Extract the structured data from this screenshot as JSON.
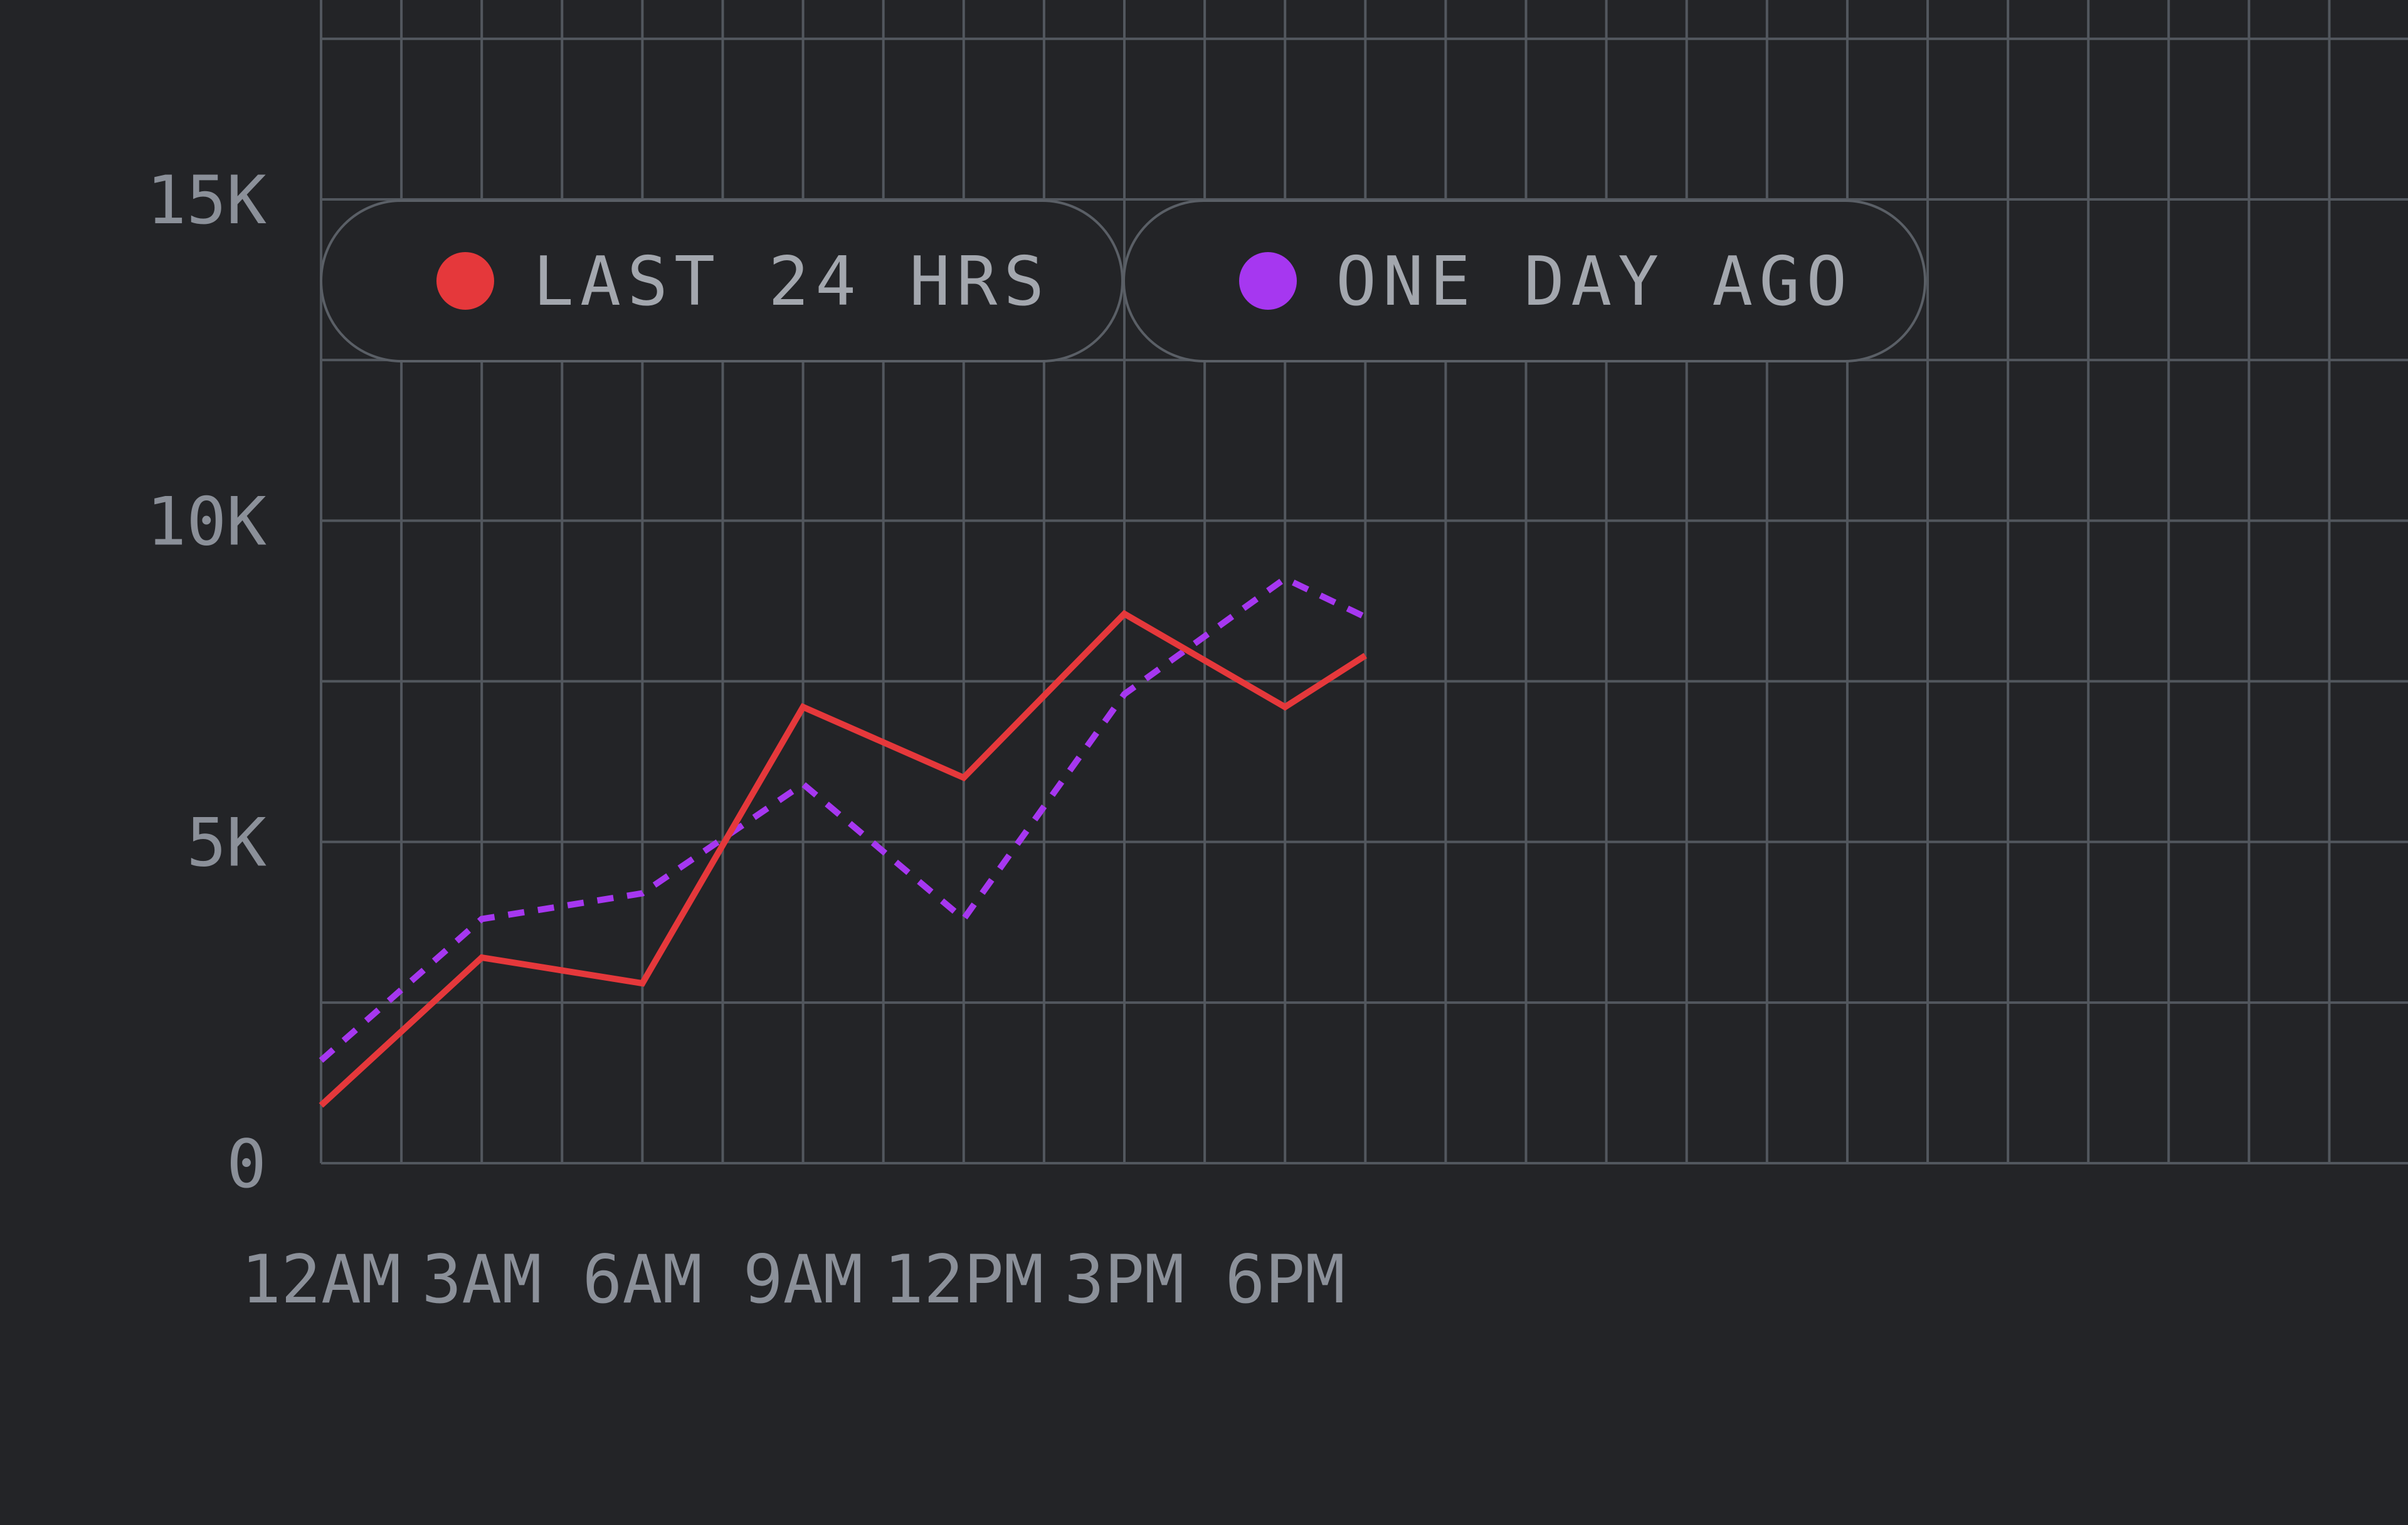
{
  "chart_data": {
    "type": "line",
    "x_ticks": [
      "12AM",
      "3AM",
      "6AM",
      "9AM",
      "12PM",
      "3PM",
      "6PM"
    ],
    "y_ticks": [
      "0",
      "5K",
      "10K",
      "15K"
    ],
    "ylim": [
      0,
      18000
    ],
    "grid": true,
    "legend_position": "top-left",
    "x": [
      0,
      3,
      6,
      9,
      12,
      15,
      18,
      19.5
    ],
    "series": [
      {
        "name": "LAST 24 HRS",
        "color": "#e5383b",
        "style": "solid",
        "values": [
          900,
          3200,
          2800,
          7100,
          6000,
          8550,
          7100,
          7900
        ]
      },
      {
        "name": "ONE DAY AGO",
        "color": "#a637f0",
        "style": "dashed",
        "values": [
          1600,
          3800,
          4200,
          5900,
          3800,
          7300,
          9100,
          8500
        ]
      }
    ]
  }
}
